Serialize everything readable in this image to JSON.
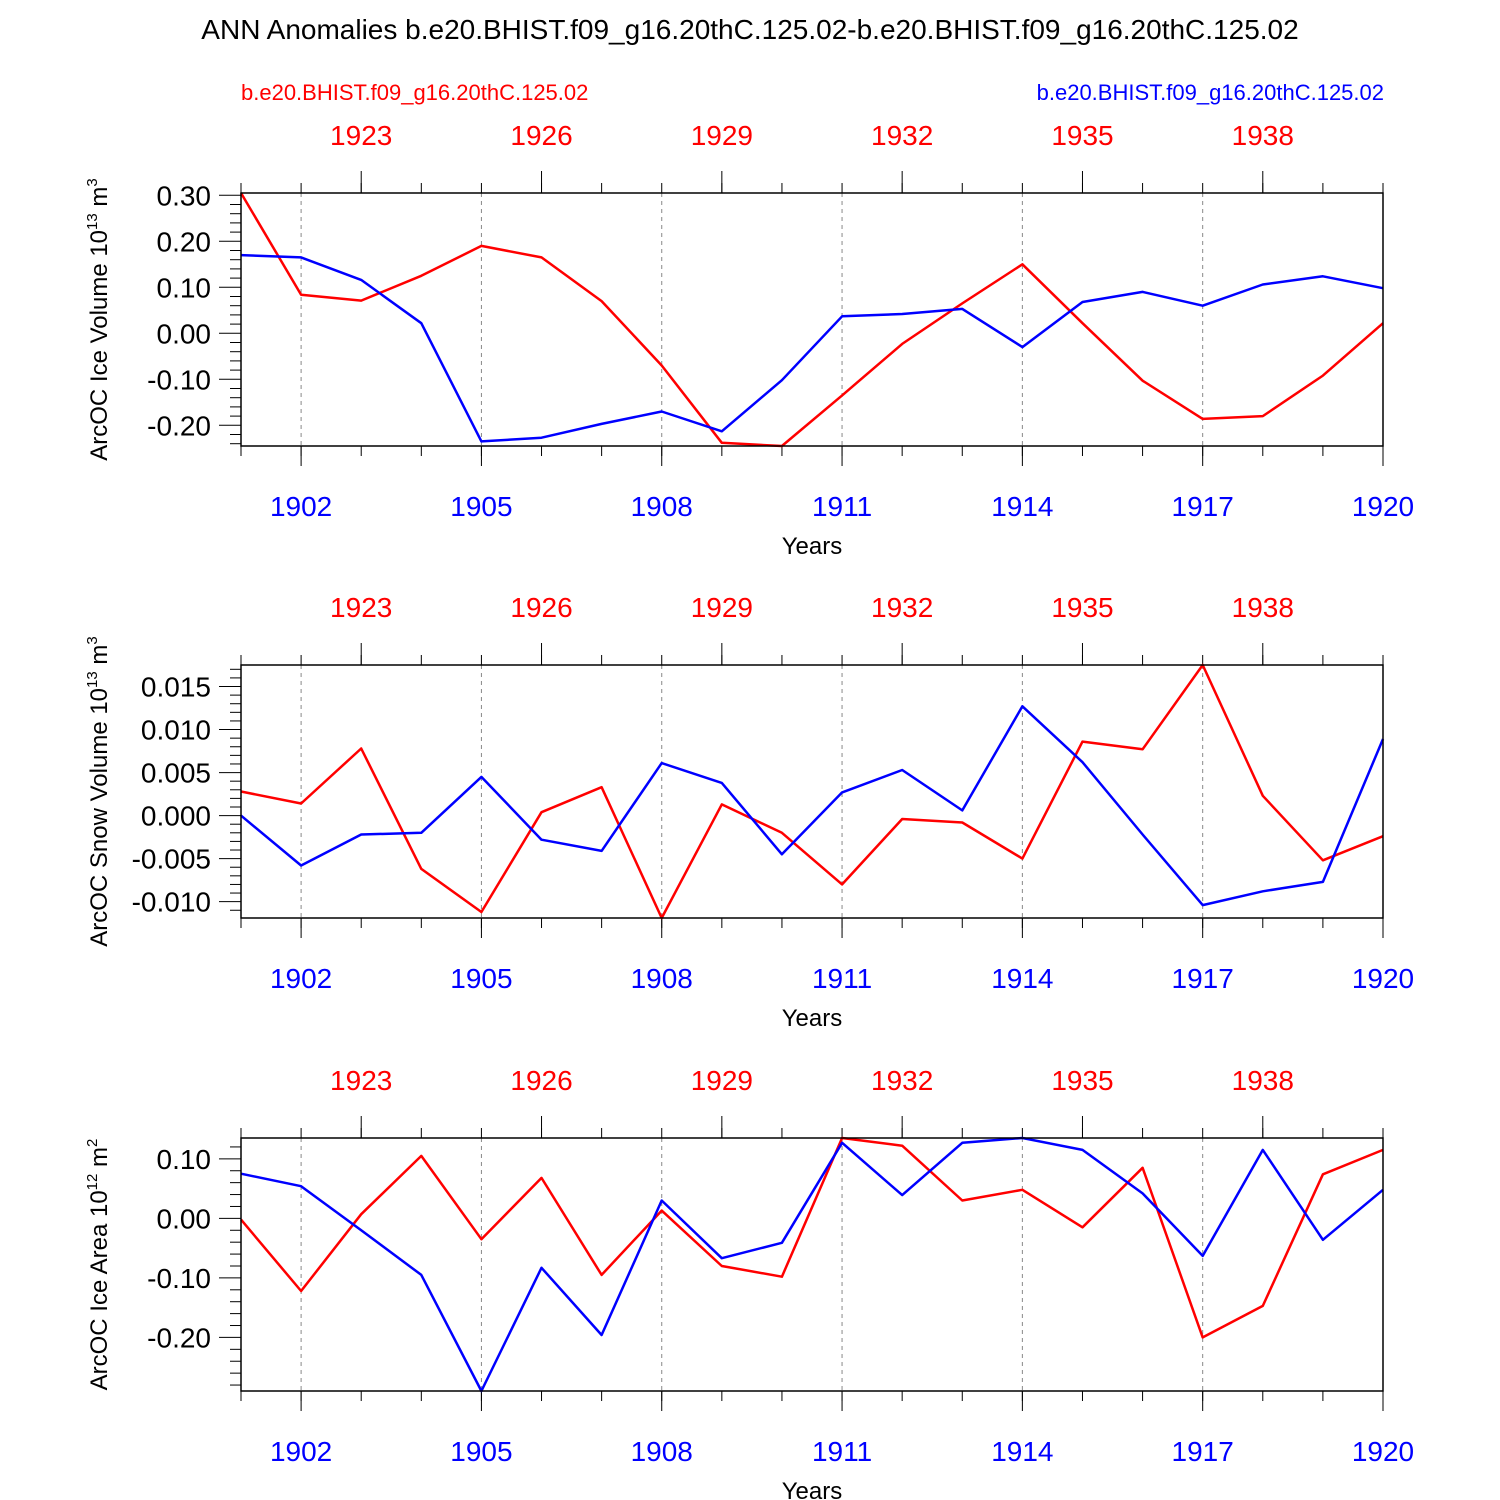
{
  "title": "ANN Anomalies b.e20.BHIST.f09_g16.20thC.125.02-b.e20.BHIST.f09_g16.20thC.125.02",
  "case1_label": "b.e20.BHIST.f09_g16.20thC.125.02",
  "case2_label": "b.e20.BHIST.f09_g16.20thC.125.02",
  "colors": {
    "case1": "#ff0000",
    "case2": "#0000ff",
    "axis": "#000000",
    "grid": "#888888"
  },
  "chart_data": [
    {
      "type": "line",
      "ylabel": "ArcOC Ice Volume 10",
      "ylabel_exp": "13",
      "ylabel_unit": " m",
      "ylabel_unit_exp": "3",
      "xlabel": "Years",
      "xlim": [
        1901,
        1920
      ],
      "ylim": [
        -0.245,
        0.305
      ],
      "yticks": [
        -0.2,
        -0.1,
        0.0,
        0.1,
        0.2,
        0.3
      ],
      "ytick_labels": [
        "-0.20",
        "-0.10",
        "0.00",
        "0.10",
        "0.20",
        "0.30"
      ],
      "bottom_ticks": [
        1902,
        1905,
        1908,
        1911,
        1914,
        1917,
        1920
      ],
      "bottom_tick_labels": [
        "1902",
        "1905",
        "1908",
        "1911",
        "1914",
        "1917",
        "1920"
      ],
      "top_ticks": [
        1902,
        1905,
        1908,
        1911,
        1914,
        1917
      ],
      "top_tick_labels": [
        "1923",
        "1926",
        "1929",
        "1932",
        "1935",
        "1938"
      ],
      "x": [
        1901,
        1902,
        1903,
        1904,
        1905,
        1906,
        1907,
        1908,
        1909,
        1910,
        1911,
        1912,
        1913,
        1914,
        1915,
        1916,
        1917,
        1918,
        1919,
        1920
      ],
      "series": [
        {
          "name": "b.e20.BHIST.f09_g16.20thC.125.02 (red, 1922-1941)",
          "color": "red",
          "values": [
            0.305,
            0.084,
            0.071,
            0.125,
            0.19,
            0.165,
            0.07,
            -0.07,
            -0.238,
            -0.245,
            -0.135,
            -0.023,
            0.065,
            0.15,
            0.022,
            -0.103,
            -0.186,
            -0.18,
            -0.092,
            0.022
          ]
        },
        {
          "name": "b.e20.BHIST.f09_g16.20thC.125.02 (blue, 1901-1920)",
          "color": "blue",
          "values": [
            0.17,
            0.165,
            0.116,
            0.022,
            -0.235,
            -0.227,
            -0.197,
            -0.17,
            -0.213,
            -0.102,
            0.037,
            0.042,
            0.053,
            -0.03,
            0.068,
            0.09,
            0.06,
            0.106,
            0.124,
            0.098
          ]
        }
      ]
    },
    {
      "type": "line",
      "ylabel": "ArcOC Snow Volume 10",
      "ylabel_exp": "13",
      "ylabel_unit": " m",
      "ylabel_unit_exp": "3",
      "xlabel": "Years",
      "xlim": [
        1901,
        1920
      ],
      "ylim": [
        -0.0119,
        0.0175
      ],
      "yticks": [
        -0.01,
        -0.005,
        0.0,
        0.005,
        0.01,
        0.015
      ],
      "ytick_labels": [
        "-0.010",
        "-0.005",
        "0.000",
        "0.005",
        "0.010",
        "0.015"
      ],
      "bottom_ticks": [
        1902,
        1905,
        1908,
        1911,
        1914,
        1917,
        1920
      ],
      "bottom_tick_labels": [
        "1902",
        "1905",
        "1908",
        "1911",
        "1914",
        "1917",
        "1920"
      ],
      "top_ticks": [
        1902,
        1905,
        1908,
        1911,
        1914,
        1917
      ],
      "top_tick_labels": [
        "1923",
        "1926",
        "1929",
        "1932",
        "1935",
        "1938"
      ],
      "x": [
        1901,
        1902,
        1903,
        1904,
        1905,
        1906,
        1907,
        1908,
        1909,
        1910,
        1911,
        1912,
        1913,
        1914,
        1915,
        1916,
        1917,
        1918,
        1919,
        1920
      ],
      "series": [
        {
          "name": "b.e20.BHIST.f09_g16.20thC.125.02 (red, 1922-1941)",
          "color": "red",
          "values": [
            0.0028,
            0.0014,
            0.0078,
            -0.0062,
            -0.0112,
            0.0004,
            0.0033,
            -0.0119,
            0.0013,
            -0.002,
            -0.008,
            -0.0004,
            -0.0008,
            -0.005,
            0.0086,
            0.0077,
            0.0175,
            0.0023,
            -0.0052,
            -0.0024
          ]
        },
        {
          "name": "b.e20.BHIST.f09_g16.20thC.125.02 (blue, 1901-1920)",
          "color": "blue",
          "values": [
            0.0,
            -0.0058,
            -0.0022,
            -0.002,
            0.0045,
            -0.0028,
            -0.0041,
            0.0061,
            0.0038,
            -0.0045,
            0.0027,
            0.0053,
            0.0006,
            0.0127,
            0.0062,
            -0.0022,
            -0.0104,
            -0.0088,
            -0.0077,
            0.0089
          ]
        }
      ]
    },
    {
      "type": "line",
      "ylabel": "ArcOC Ice Area 10",
      "ylabel_exp": "12",
      "ylabel_unit": " m",
      "ylabel_unit_exp": "2",
      "xlabel": "Years",
      "xlim": [
        1901,
        1920
      ],
      "ylim": [
        -0.29,
        0.135
      ],
      "yticks": [
        -0.2,
        -0.1,
        0.0,
        0.1
      ],
      "ytick_labels": [
        "-0.20",
        "-0.10",
        "0.00",
        "0.10"
      ],
      "bottom_ticks": [
        1902,
        1905,
        1908,
        1911,
        1914,
        1917,
        1920
      ],
      "bottom_tick_labels": [
        "1902",
        "1905",
        "1908",
        "1911",
        "1914",
        "1917",
        "1920"
      ],
      "top_ticks": [
        1902,
        1905,
        1908,
        1911,
        1914,
        1917
      ],
      "top_tick_labels": [
        "1923",
        "1926",
        "1929",
        "1932",
        "1935",
        "1938"
      ],
      "x": [
        1901,
        1902,
        1903,
        1904,
        1905,
        1906,
        1907,
        1908,
        1909,
        1910,
        1911,
        1912,
        1913,
        1914,
        1915,
        1916,
        1917,
        1918,
        1919,
        1920
      ],
      "series": [
        {
          "name": "b.e20.BHIST.f09_g16.20thC.125.02 (red, 1922-1941)",
          "color": "red",
          "values": [
            -0.002,
            -0.122,
            0.007,
            0.105,
            -0.035,
            0.068,
            -0.095,
            0.013,
            -0.08,
            -0.098,
            0.135,
            0.122,
            0.03,
            0.048,
            -0.015,
            0.085,
            -0.2,
            -0.147,
            0.074,
            0.115
          ]
        },
        {
          "name": "b.e20.BHIST.f09_g16.20thC.125.02 (blue, 1901-1920)",
          "color": "blue",
          "values": [
            0.075,
            0.054,
            -0.02,
            -0.095,
            -0.29,
            -0.083,
            -0.196,
            0.03,
            -0.067,
            -0.041,
            0.127,
            0.039,
            0.127,
            0.135,
            0.115,
            0.042,
            -0.063,
            0.115,
            -0.036,
            0.048
          ]
        }
      ]
    }
  ]
}
